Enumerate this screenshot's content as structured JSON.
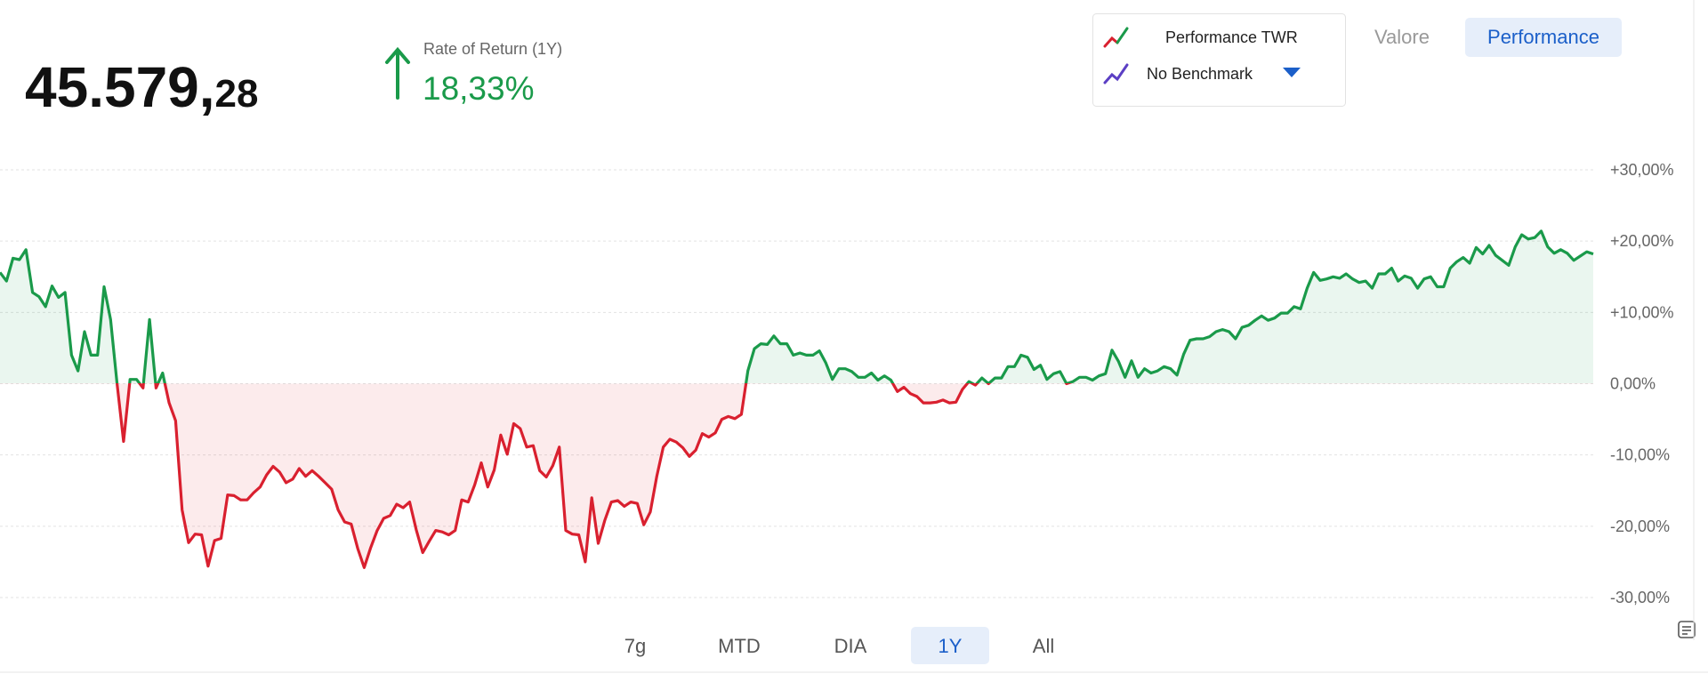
{
  "header": {
    "value_main": "45.579,",
    "value_decimals": "28",
    "return_label": "Rate of Return (1Y)",
    "return_value": "18,33%"
  },
  "legend": {
    "benchmark": "No Benchmark"
  },
  "view_toggle": [
    "Valore",
    "Performance"
  ],
  "period_tabs": [
    "7g",
    "MTD",
    "DIA",
    "1Y",
    "All"
  ],
  "chart_data": {
    "type": "line",
    "series": [
      {
        "name": "Performance TWR",
        "color": "#1a9a4a",
        "negative_color": "#d9202f",
        "values": [
          15.6,
          14.4,
          17.6,
          17.4,
          18.8,
          12.8,
          12.2,
          10.8,
          13.7,
          12.1,
          12.8,
          4.0,
          1.8,
          7.3,
          4.0,
          4.0,
          13.6,
          9.0,
          0,
          -8.1,
          0.6,
          0.6,
          -0.6,
          9.0,
          -0.6,
          1.5,
          -2.7,
          -5.2,
          -17.7,
          -22.3,
          -21.1,
          -21.2,
          -25.6,
          -22.0,
          -21.7,
          -15.6,
          -15.7,
          -16.3,
          -16.3,
          -15.3,
          -14.5,
          -12.8,
          -11.6,
          -12.4,
          -13.9,
          -13.4,
          -11.9,
          -13.0,
          -12.2,
          -13.0,
          -13.9,
          -14.8,
          -17.7,
          -19.4,
          -19.7,
          -23.1,
          -25.8,
          -23.0,
          -20.6,
          -18.9,
          -18.5,
          -16.9,
          -17.4,
          -16.6,
          -20.5,
          -23.7,
          -22.1,
          -20.6,
          -20.8,
          -21.2,
          -20.6,
          -16.3,
          -16.6,
          -14.2,
          -11.1,
          -14.5,
          -12.1,
          -7.2,
          -9.9,
          -5.6,
          -6.3,
          -8.9,
          -8.7,
          -12.2,
          -13.1,
          -11.5,
          -8.9,
          -20.6,
          -21.1,
          -21.2,
          -25.0,
          -16.0,
          -22.4,
          -19.2,
          -16.6,
          -16.4,
          -17.2,
          -16.6,
          -16.8,
          -19.8,
          -18.0,
          -13.0,
          -8.9,
          -7.8,
          -8.2,
          -9.0,
          -10.2,
          -9.3,
          -7.0,
          -7.5,
          -6.9,
          -5.0,
          -4.6,
          -4.9,
          -4.3,
          1.8,
          4.9,
          5.6,
          5.5,
          6.7,
          5.6,
          5.6,
          4.0,
          4.3,
          4.0,
          4.0,
          4.6,
          2.9,
          0.6,
          2.1,
          2.1,
          1.7,
          0.9,
          0.9,
          1.5,
          0.5,
          1.1,
          0.5,
          -1.1,
          -0.5,
          -1.4,
          -1.8,
          -2.7,
          -2.7,
          -2.6,
          -2.3,
          -2.7,
          -2.6,
          -0.8,
          0.3,
          -0.2,
          0.8,
          0,
          0.8,
          0.8,
          2.4,
          2.4,
          4.0,
          3.7,
          2.0,
          2.6,
          0.6,
          1.4,
          1.7,
          0,
          0.3,
          0.9,
          0.9,
          0.5,
          1.1,
          1.4,
          4.7,
          3.1,
          0.9,
          3.2,
          0.9,
          2.1,
          1.5,
          1.8,
          2.4,
          2.1,
          1.2,
          4.1,
          6.1,
          6.3,
          6.3,
          6.6,
          7.3,
          7.6,
          7.3,
          6.3,
          7.9,
          8.2,
          8.9,
          9.5,
          8.9,
          9.2,
          9.9,
          9.9,
          10.8,
          10.5,
          13.4,
          15.6,
          14.5,
          14.7,
          15.0,
          14.8,
          15.4,
          14.7,
          14.2,
          14.4,
          13.4,
          15.4,
          15.4,
          16.2,
          14.4,
          15.1,
          14.8,
          13.4,
          14.7,
          15.0,
          13.6,
          13.6,
          16.2,
          17.1,
          17.7,
          16.9,
          19.1,
          18.2,
          19.4,
          18.0,
          17.3,
          16.6,
          19.2,
          20.9,
          20.3,
          20.5,
          21.4,
          19.2,
          18.3,
          18.8,
          18.3,
          17.3,
          17.9,
          18.5,
          18.2
        ]
      }
    ],
    "ylim": [
      -30,
      30
    ],
    "yticks": [
      {
        "value": 30,
        "label": "+30,00%"
      },
      {
        "value": 20,
        "label": "+20,00%"
      },
      {
        "value": 10,
        "label": "+10,00%"
      },
      {
        "value": 0,
        "label": "0,00%"
      },
      {
        "value": -10,
        "label": "-10,00%"
      },
      {
        "value": -20,
        "label": "-20,00%"
      },
      {
        "value": -30,
        "label": "-30,00%"
      }
    ],
    "grid": true
  }
}
